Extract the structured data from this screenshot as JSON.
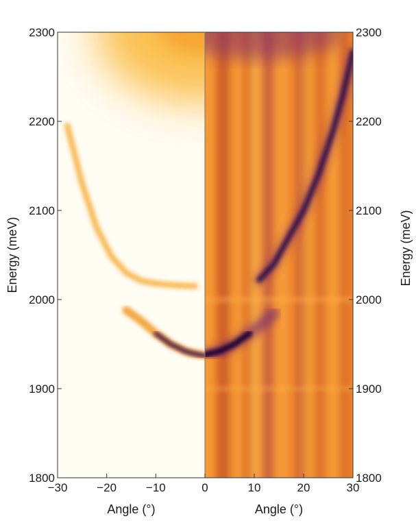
{
  "chart_data": [
    {
      "type": "heatmap",
      "title": "",
      "xlabel": "Angle (°)",
      "ylabel": "Energy (meV)",
      "xlim": [
        -30,
        0
      ],
      "ylim": [
        1800,
        2300
      ],
      "xticks": [
        "−30",
        "−20",
        "−10",
        "0"
      ],
      "yticks": [
        "1800",
        "1900",
        "2000",
        "2100",
        "2200",
        "2300"
      ],
      "colormap": [
        "#fffcf3",
        "#ffe49e",
        "#f8a62e",
        "#5a1f78",
        "#26093e"
      ],
      "features": [
        {
          "name": "upper",
          "points": [
            [
              -28,
              2195
            ],
            [
              -25,
              2130
            ],
            [
              -22,
              2080
            ],
            [
              -19,
              2048
            ],
            [
              -16,
              2030
            ],
            [
              -13,
              2021
            ],
            [
              -10,
              2018
            ],
            [
              -6,
              2016
            ],
            [
              -2,
              2015
            ]
          ]
        },
        {
          "name": "lower",
          "points": [
            [
              -16,
              1988
            ],
            [
              -13,
              1976
            ],
            [
              -10,
              1962
            ],
            [
              -7,
              1950
            ],
            [
              -4,
              1942
            ],
            [
              -2,
              1939
            ],
            [
              0,
              1937
            ]
          ]
        }
      ]
    },
    {
      "type": "heatmap",
      "title": "",
      "xlabel": "Angle (°)",
      "ylabel": "Energy (meV)",
      "xlim": [
        0,
        30
      ],
      "ylim": [
        1800,
        2300
      ],
      "xticks": [
        "0",
        "10",
        "20",
        "30"
      ],
      "yticks": [
        "1800",
        "1900",
        "2000",
        "2100",
        "2200",
        "2300"
      ],
      "colormap": [
        "#ffa838",
        "#e0641e",
        "#9a3a5e",
        "#5a1f78",
        "#26093e"
      ],
      "features": [
        {
          "name": "lower",
          "points": [
            [
              0,
              1938
            ],
            [
              3,
              1942
            ],
            [
              6,
              1950
            ],
            [
              9,
              1962
            ],
            [
              12,
              1974
            ],
            [
              14,
              1985
            ]
          ]
        },
        {
          "name": "upper",
          "points": [
            [
              11,
              2022
            ],
            [
              14,
              2040
            ],
            [
              17,
              2070
            ],
            [
              20,
              2100
            ],
            [
              23,
              2140
            ],
            [
              26,
              2190
            ],
            [
              28,
              2230
            ],
            [
              30,
              2278
            ]
          ]
        }
      ]
    }
  ]
}
